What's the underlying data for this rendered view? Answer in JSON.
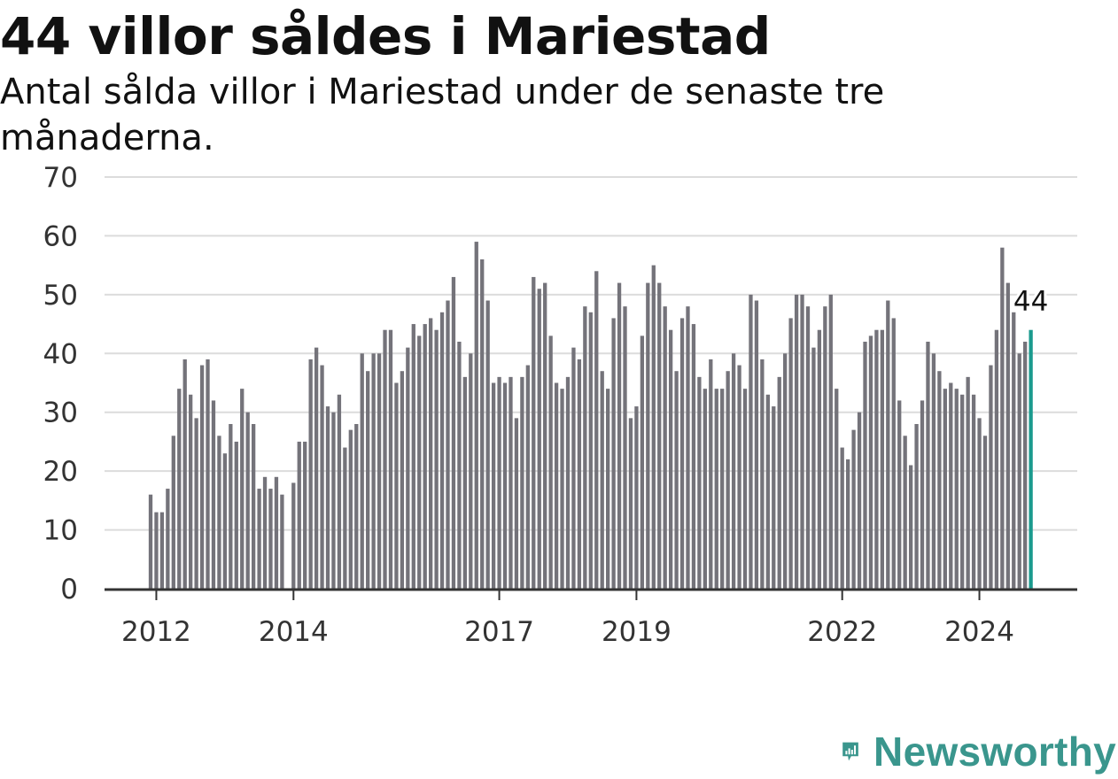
{
  "title": "44 villor såldes i Mariestad",
  "subtitle": "Antal sålda villor i Mariestad under de senaste tre månaderna.",
  "brand": "Newsworthy",
  "colors": {
    "bar": "#74737a",
    "highlight": "#1a9a8e",
    "grid": "#dcdcdc",
    "axis": "#333333",
    "brand": "#3a968d"
  },
  "chart_data": {
    "type": "bar",
    "ylim": [
      0,
      70
    ],
    "y_ticks": [
      "0",
      "10",
      "20",
      "30",
      "40",
      "50",
      "60",
      "70"
    ],
    "x_ticks": [
      {
        "label": "2012",
        "date": "2012-01"
      },
      {
        "label": "2014",
        "date": "2014-01"
      },
      {
        "label": "2017",
        "date": "2017-01"
      },
      {
        "label": "2019",
        "date": "2019-01"
      },
      {
        "label": "2022",
        "date": "2022-01"
      },
      {
        "label": "2024",
        "date": "2024-01"
      }
    ],
    "grid": true,
    "x": [
      "2011-12",
      "2012-01",
      "2012-02",
      "2012-03",
      "2012-04",
      "2012-05",
      "2012-06",
      "2012-07",
      "2012-08",
      "2012-09",
      "2012-10",
      "2012-11",
      "2012-12",
      "2013-01",
      "2013-02",
      "2013-03",
      "2013-04",
      "2013-05",
      "2013-06",
      "2013-07",
      "2013-08",
      "2013-09",
      "2013-10",
      "2013-11",
      "2013-12",
      "2014-01",
      "2014-02",
      "2014-03",
      "2014-04",
      "2014-05",
      "2014-06",
      "2014-07",
      "2014-08",
      "2014-09",
      "2014-10",
      "2014-11",
      "2014-12",
      "2015-01",
      "2015-02",
      "2015-03",
      "2015-04",
      "2015-05",
      "2015-06",
      "2015-07",
      "2015-08",
      "2015-09",
      "2015-10",
      "2015-11",
      "2015-12",
      "2016-01",
      "2016-02",
      "2016-03",
      "2016-04",
      "2016-05",
      "2016-06",
      "2016-07",
      "2016-08",
      "2016-09",
      "2016-10",
      "2016-11",
      "2016-12",
      "2017-01",
      "2017-02",
      "2017-03",
      "2017-04",
      "2017-05",
      "2017-06",
      "2017-07",
      "2017-08",
      "2017-09",
      "2017-10",
      "2017-11",
      "2017-12",
      "2018-01",
      "2018-02",
      "2018-03",
      "2018-04",
      "2018-05",
      "2018-06",
      "2018-07",
      "2018-08",
      "2018-09",
      "2018-10",
      "2018-11",
      "2018-12",
      "2019-01",
      "2019-02",
      "2019-03",
      "2019-04",
      "2019-05",
      "2019-06",
      "2019-07",
      "2019-08",
      "2019-09",
      "2019-10",
      "2019-11",
      "2019-12",
      "2020-01",
      "2020-02",
      "2020-03",
      "2020-04",
      "2020-05",
      "2020-06",
      "2020-07",
      "2020-08",
      "2020-09",
      "2020-10",
      "2020-11",
      "2020-12",
      "2021-01",
      "2021-02",
      "2021-03",
      "2021-04",
      "2021-05",
      "2021-06",
      "2021-07",
      "2021-08",
      "2021-09",
      "2021-10",
      "2021-11",
      "2021-12",
      "2022-01",
      "2022-02",
      "2022-03",
      "2022-04",
      "2022-05",
      "2022-06",
      "2022-07",
      "2022-08",
      "2022-09",
      "2022-10",
      "2022-11",
      "2022-12",
      "2023-01",
      "2023-02",
      "2023-03",
      "2023-04",
      "2023-05",
      "2023-06",
      "2023-07",
      "2023-08",
      "2023-09",
      "2023-10",
      "2023-11",
      "2023-12",
      "2024-01",
      "2024-02",
      "2024-03",
      "2024-04",
      "2024-05",
      "2024-06",
      "2024-07",
      "2024-08",
      "2024-09",
      "2024-10"
    ],
    "values": [
      16,
      13,
      13,
      17,
      26,
      34,
      39,
      33,
      29,
      38,
      39,
      32,
      26,
      23,
      28,
      25,
      34,
      30,
      28,
      17,
      19,
      17,
      19,
      16,
      null,
      18,
      25,
      25,
      39,
      41,
      38,
      31,
      30,
      33,
      24,
      27,
      28,
      40,
      37,
      40,
      40,
      44,
      44,
      35,
      37,
      41,
      45,
      43,
      45,
      46,
      44,
      47,
      49,
      53,
      42,
      36,
      40,
      59,
      56,
      49,
      35,
      36,
      35,
      36,
      29,
      36,
      38,
      53,
      51,
      52,
      43,
      35,
      34,
      36,
      41,
      39,
      48,
      47,
      54,
      37,
      34,
      46,
      52,
      48,
      29,
      31,
      43,
      52,
      55,
      52,
      48,
      44,
      37,
      46,
      48,
      45,
      36,
      34,
      39,
      34,
      34,
      37,
      40,
      38,
      34,
      50,
      49,
      39,
      33,
      31,
      36,
      40,
      46,
      50,
      50,
      48,
      41,
      44,
      48,
      50,
      34,
      24,
      22,
      27,
      30,
      42,
      43,
      44,
      44,
      49,
      46,
      32,
      26,
      21,
      28,
      32,
      42,
      40,
      37,
      34,
      35,
      34,
      33,
      36,
      33,
      29,
      26,
      38,
      44,
      58,
      52,
      47,
      40,
      42,
      44
    ],
    "highlight_last": true,
    "annotation": "44"
  }
}
